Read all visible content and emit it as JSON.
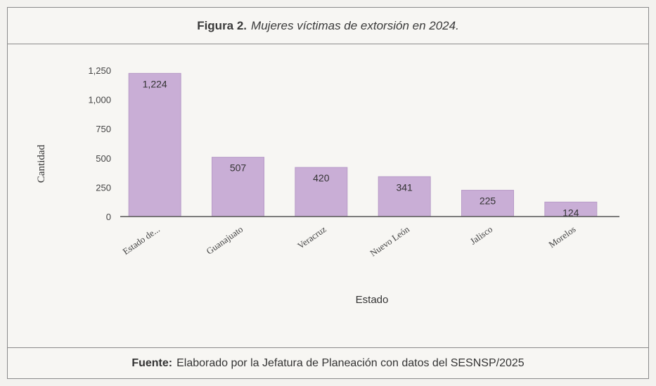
{
  "figure": {
    "label": "Figura 2.",
    "title": "Mujeres víctimas de extorsión en 2024."
  },
  "footer": {
    "label": "Fuente:",
    "text": "Elaborado por la Jefatura de Planeación con datos del SESNSP/2025"
  },
  "chart_data": {
    "type": "bar",
    "categories": [
      "Estado de...",
      "Guanajuato",
      "Veracruz",
      "Nuevo León",
      "Jalisco",
      "Morelos"
    ],
    "values": [
      1224,
      507,
      420,
      341,
      225,
      124
    ],
    "data_labels": [
      "1,224",
      "507",
      "420",
      "341",
      "225",
      "124"
    ],
    "xlabel": "Estado",
    "ylabel": "Cantidad",
    "ylim": [
      0,
      1250
    ],
    "yticks": [
      0,
      250,
      500,
      750,
      1000,
      1250
    ],
    "ytick_labels": [
      "0",
      "250",
      "500",
      "750",
      "1,000",
      "1,250"
    ],
    "grid": false,
    "bar_color": "#c9aed6",
    "axis_color": "#555555"
  }
}
